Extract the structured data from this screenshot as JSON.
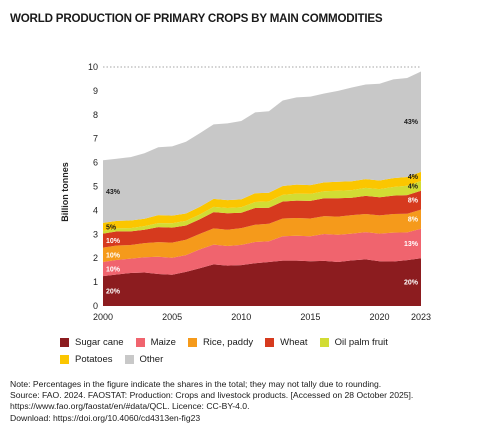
{
  "title": "WORLD PRODUCTION OF PRIMARY CROPS BY MAIN COMMODITIES",
  "chart_data": {
    "type": "area",
    "stacked": true,
    "title": "WORLD PRODUCTION OF PRIMARY CROPS BY MAIN COMMODITIES",
    "xlabel": "",
    "ylabel": "Billion tonnes",
    "x": [
      2000,
      2001,
      2002,
      2003,
      2004,
      2005,
      2006,
      2007,
      2008,
      2009,
      2010,
      2011,
      2012,
      2013,
      2014,
      2015,
      2016,
      2017,
      2018,
      2019,
      2020,
      2021,
      2022,
      2023
    ],
    "x_ticks": [
      "2000",
      "2005",
      "2010",
      "2015",
      "2020",
      "2023"
    ],
    "y_ticks": [
      "0",
      "1",
      "2",
      "3",
      "4",
      "5",
      "6",
      "7",
      "8",
      "9",
      "10"
    ],
    "ylim": [
      0,
      10
    ],
    "grid": "dotted line at top",
    "legend_position": "bottom",
    "series": [
      {
        "name": "Sugar cane",
        "color": "#8c1c1f",
        "values": [
          1.25,
          1.32,
          1.38,
          1.4,
          1.34,
          1.31,
          1.43,
          1.58,
          1.74,
          1.69,
          1.71,
          1.79,
          1.84,
          1.9,
          1.9,
          1.87,
          1.89,
          1.84,
          1.91,
          1.95,
          1.87,
          1.86,
          1.92,
          2.0
        ]
      },
      {
        "name": "Maize",
        "color": "#f0646e",
        "values": [
          0.59,
          0.61,
          0.6,
          0.64,
          0.72,
          0.71,
          0.7,
          0.79,
          0.83,
          0.82,
          0.85,
          0.89,
          0.87,
          1.02,
          1.04,
          1.05,
          1.12,
          1.14,
          1.12,
          1.14,
          1.16,
          1.21,
          1.16,
          1.23
        ]
      },
      {
        "name": "Rice, paddy",
        "color": "#f59a1b",
        "values": [
          0.6,
          0.6,
          0.57,
          0.59,
          0.61,
          0.63,
          0.64,
          0.65,
          0.68,
          0.68,
          0.7,
          0.72,
          0.73,
          0.74,
          0.74,
          0.74,
          0.75,
          0.76,
          0.77,
          0.76,
          0.76,
          0.78,
          0.78,
          0.8
        ]
      },
      {
        "name": "Wheat",
        "color": "#d63a1e",
        "values": [
          0.59,
          0.59,
          0.57,
          0.56,
          0.63,
          0.63,
          0.6,
          0.61,
          0.68,
          0.69,
          0.64,
          0.7,
          0.67,
          0.71,
          0.73,
          0.74,
          0.75,
          0.77,
          0.73,
          0.76,
          0.76,
          0.77,
          0.78,
          0.79
        ]
      },
      {
        "name": "Oil palm fruit",
        "color": "#d2dc34",
        "values": [
          0.12,
          0.13,
          0.14,
          0.15,
          0.17,
          0.18,
          0.19,
          0.2,
          0.22,
          0.22,
          0.23,
          0.25,
          0.27,
          0.28,
          0.29,
          0.29,
          0.29,
          0.31,
          0.32,
          0.33,
          0.34,
          0.36,
          0.39,
          0.41
        ]
      },
      {
        "name": "Potatoes",
        "color": "#fbc600",
        "values": [
          0.33,
          0.31,
          0.32,
          0.31,
          0.33,
          0.32,
          0.31,
          0.32,
          0.33,
          0.33,
          0.33,
          0.37,
          0.36,
          0.37,
          0.38,
          0.37,
          0.37,
          0.38,
          0.37,
          0.37,
          0.36,
          0.37,
          0.37,
          0.38
        ]
      },
      {
        "name": "Other",
        "color": "#c8c8c8",
        "values": [
          2.62,
          2.6,
          2.65,
          2.74,
          2.84,
          2.9,
          3.0,
          3.08,
          3.12,
          3.21,
          3.28,
          3.38,
          3.41,
          3.58,
          3.65,
          3.7,
          3.72,
          3.8,
          3.92,
          3.96,
          4.05,
          4.13,
          4.14,
          4.2
        ]
      }
    ],
    "annotations": [
      {
        "year": 2000,
        "series": "Sugar cane",
        "label": "20%"
      },
      {
        "year": 2000,
        "series": "Maize",
        "label": "10%"
      },
      {
        "year": 2000,
        "series": "Rice, paddy",
        "label": "10%"
      },
      {
        "year": 2000,
        "series": "Wheat",
        "label": "10%"
      },
      {
        "year": 2000,
        "series": "Potatoes",
        "label": "5%"
      },
      {
        "year": 2000,
        "series": "Other",
        "label": "43%"
      },
      {
        "year": 2023,
        "series": "Sugar cane",
        "label": "20%"
      },
      {
        "year": 2023,
        "series": "Maize",
        "label": "13%"
      },
      {
        "year": 2023,
        "series": "Rice, paddy",
        "label": "8%"
      },
      {
        "year": 2023,
        "series": "Wheat",
        "label": "8%"
      },
      {
        "year": 2023,
        "series": "Oil palm fruit",
        "label": "4%"
      },
      {
        "year": 2023,
        "series": "Potatoes",
        "label": "4%"
      },
      {
        "year": 2023,
        "series": "Other",
        "label": "43%"
      }
    ]
  },
  "note": {
    "line1": "Note: Percentages in the figure indicate the shares in the total; they may not tally due to rounding.",
    "line2": "Source: FAO. 2024. FAOSTAT: Production: Crops and livestock products. [Accessed on 28 October 2025].",
    "line3": "https://www.fao.org/faostat/en/#data/QCL. Licence: CC-BY-4.0.",
    "line4": "Download: https://doi.org/10.4060/cd4313en-fig23"
  }
}
